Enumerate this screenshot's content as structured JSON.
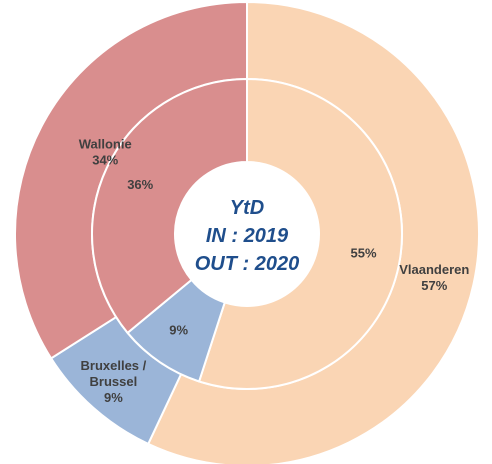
{
  "chart_data": {
    "type": "pie",
    "center_text": [
      "YtD",
      "IN : 2019",
      "OUT : 2020"
    ],
    "series": [
      {
        "name": "IN : 2019",
        "ring": "inner",
        "slices": [
          {
            "label": "Vlaanderen",
            "value": 55,
            "value_label": "55%",
            "color": "#fad5b4"
          },
          {
            "label": "Bruxelles / Brussel",
            "value": 9,
            "value_label": "9%",
            "color": "#9bb5d8"
          },
          {
            "label": "Wallonie",
            "value": 36,
            "value_label": "36%",
            "color": "#d98e8e"
          }
        ]
      },
      {
        "name": "OUT : 2020",
        "ring": "outer",
        "slices": [
          {
            "label": "Vlaanderen",
            "value": 57,
            "value_label": "57%",
            "name_lines": [
              "Vlaanderen"
            ],
            "color": "#fad5b4"
          },
          {
            "label": "Bruxelles / Brussel",
            "value": 9,
            "value_label": "9%",
            "name_lines": [
              "Bruxelles /",
              "Brussel"
            ],
            "color": "#9bb5d8"
          },
          {
            "label": "Wallonie",
            "value": 34,
            "value_label": "34%",
            "name_lines": [
              "Wallonie"
            ],
            "color": "#d98e8e"
          }
        ]
      }
    ]
  }
}
